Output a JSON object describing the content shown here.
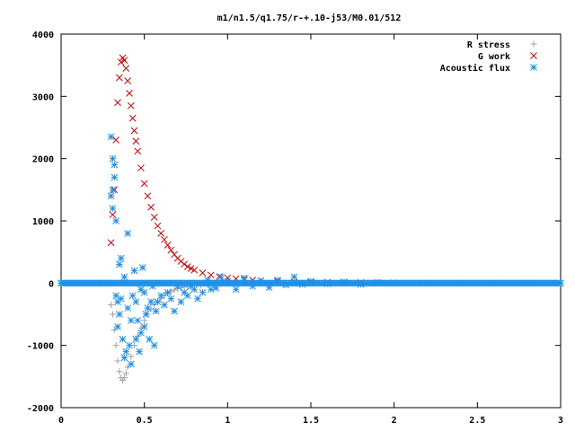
{
  "chart_data": {
    "type": "scatter",
    "title": "m1/n1.5/q1.75/r-+.10-j53/M0.01/512",
    "xlabel": "",
    "ylabel": "",
    "xlim": [
      0,
      3
    ],
    "ylim": [
      -2000,
      4000
    ],
    "x_ticks": [
      "0",
      "0.5",
      "1",
      "1.5",
      "2",
      "2.5",
      "3"
    ],
    "y_ticks": [
      "-2000",
      "-1000",
      "0",
      "1000",
      "2000",
      "3000",
      "4000"
    ],
    "x_tick_values": [
      0,
      0.5,
      1,
      1.5,
      2,
      2.5,
      3
    ],
    "y_tick_values": [
      -2000,
      -1000,
      0,
      1000,
      2000,
      3000,
      4000
    ],
    "grid": false,
    "legend_position": "top-right",
    "series": [
      {
        "name": "R stress",
        "marker": "plus",
        "color": "#a0a0a0",
        "x": [
          0.3,
          0.31,
          0.32,
          0.33,
          0.34,
          0.35,
          0.36,
          0.37,
          0.38,
          0.39,
          0.4,
          0.42,
          0.44,
          0.46,
          0.48,
          0.5,
          0.52,
          0.54,
          0.56,
          0.58,
          0.6,
          0.62,
          0.64,
          0.66,
          0.68,
          0.7,
          0.72,
          0.74,
          0.76,
          0.78,
          0.8,
          0.84,
          0.88,
          0.92,
          0.96,
          1.0,
          1.05,
          1.1,
          1.15,
          1.2,
          1.3,
          1.4,
          1.5,
          1.6,
          1.7,
          1.8,
          1.9,
          2.0,
          2.2,
          2.4
        ],
        "y": [
          -350,
          -500,
          -750,
          -1000,
          -1250,
          -1420,
          -1520,
          -1560,
          -1520,
          -1450,
          -1350,
          -1180,
          -1000,
          -850,
          -720,
          -600,
          -500,
          -420,
          -350,
          -290,
          -240,
          -200,
          -160,
          -130,
          -110,
          -90,
          -75,
          -62,
          -52,
          -44,
          -38,
          -30,
          -24,
          -19,
          -15,
          -12,
          -9,
          -7,
          -6,
          -5,
          -3,
          -2,
          -2,
          -1,
          -1,
          -1,
          0,
          0,
          0,
          0
        ]
      },
      {
        "name": "G work",
        "marker": "cross",
        "color": "#d40000",
        "x": [
          0.3,
          0.31,
          0.32,
          0.33,
          0.34,
          0.35,
          0.36,
          0.37,
          0.38,
          0.39,
          0.4,
          0.41,
          0.42,
          0.43,
          0.44,
          0.45,
          0.46,
          0.48,
          0.5,
          0.52,
          0.54,
          0.56,
          0.58,
          0.6,
          0.62,
          0.64,
          0.66,
          0.68,
          0.7,
          0.72,
          0.74,
          0.76,
          0.78,
          0.8,
          0.85,
          0.9,
          0.95,
          1.0,
          1.05,
          1.1,
          1.15,
          1.2,
          1.3,
          1.4,
          1.5,
          1.6,
          1.7,
          1.8,
          1.9,
          2.0,
          2.2,
          2.4,
          2.6
        ],
        "y": [
          650,
          1100,
          1500,
          2300,
          2900,
          3300,
          3550,
          3620,
          3580,
          3450,
          3250,
          3050,
          2850,
          2650,
          2450,
          2280,
          2120,
          1850,
          1600,
          1400,
          1220,
          1060,
          920,
          800,
          700,
          610,
          530,
          460,
          400,
          350,
          305,
          265,
          235,
          210,
          165,
          130,
          105,
          85,
          70,
          58,
          48,
          40,
          30,
          22,
          17,
          13,
          10,
          8,
          6,
          4,
          2,
          1,
          0
        ]
      },
      {
        "name": "Acoustic flux",
        "marker": "star",
        "color": "#1e90e8",
        "x": [
          0.0,
          0.05,
          0.1,
          0.15,
          0.2,
          0.25,
          0.29,
          0.3,
          0.3,
          0.31,
          0.31,
          0.31,
          0.32,
          0.32,
          0.33,
          0.33,
          0.34,
          0.34,
          0.35,
          0.35,
          0.36,
          0.36,
          0.37,
          0.38,
          0.38,
          0.39,
          0.4,
          0.4,
          0.41,
          0.42,
          0.42,
          0.43,
          0.44,
          0.45,
          0.45,
          0.46,
          0.47,
          0.48,
          0.48,
          0.49,
          0.5,
          0.5,
          0.51,
          0.52,
          0.53,
          0.54,
          0.55,
          0.56,
          0.57,
          0.58,
          0.6,
          0.62,
          0.64,
          0.66,
          0.68,
          0.7,
          0.72,
          0.74,
          0.76,
          0.78,
          0.8,
          0.82,
          0.85,
          0.88,
          0.9,
          0.93,
          0.96,
          1.0,
          1.05,
          1.1,
          1.15,
          1.2,
          1.25,
          1.3,
          1.35,
          1.4,
          1.45,
          1.5,
          1.6,
          1.7,
          1.8,
          1.9,
          2.0,
          2.2,
          2.4,
          2.6,
          2.8,
          3.0
        ],
        "y": [
          0,
          0,
          0,
          0,
          0,
          0,
          0,
          1400,
          2350,
          2000,
          1500,
          1200,
          1900,
          1700,
          1000,
          -200,
          -700,
          -300,
          300,
          -500,
          400,
          -250,
          -900,
          -1200,
          100,
          -1100,
          800,
          -400,
          -1000,
          -1300,
          -600,
          -200,
          200,
          -900,
          -300,
          -600,
          -1100,
          -800,
          -100,
          250,
          -700,
          -150,
          -500,
          -400,
          -900,
          -300,
          -50,
          -1000,
          -450,
          -300,
          -200,
          -350,
          -150,
          -250,
          -450,
          -50,
          -300,
          -150,
          -200,
          -50,
          -100,
          -250,
          -150,
          50,
          -100,
          -80,
          100,
          30,
          -100,
          80,
          -50,
          40,
          -70,
          50,
          -30,
          100,
          -20,
          30,
          -10,
          20,
          -20,
          10,
          0,
          0,
          0,
          0,
          0,
          0
        ]
      }
    ]
  }
}
